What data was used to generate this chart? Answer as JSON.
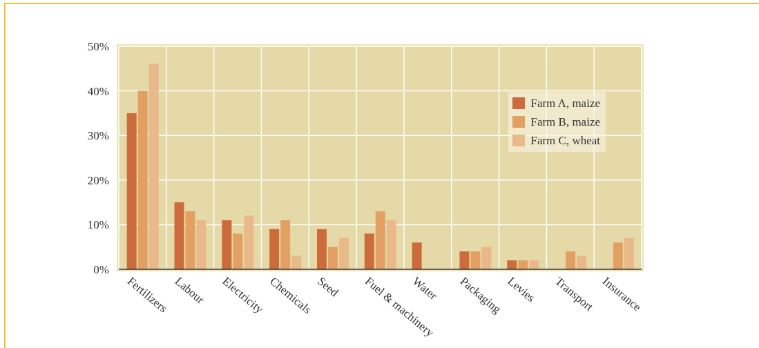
{
  "chart_data": {
    "type": "bar",
    "categories": [
      "Fertilizers",
      "Labour",
      "Electricity",
      "Chemicals",
      "Seed",
      "Fuel & machinery",
      "Water",
      "Packaging",
      "Levies",
      "Transport",
      "Insurance"
    ],
    "series": [
      {
        "name": "Farm A, maize",
        "color": "#cc6b3b",
        "values": [
          35,
          15,
          11,
          9,
          9,
          8,
          6,
          4,
          2,
          0,
          0
        ]
      },
      {
        "name": "Farm B, maize",
        "color": "#e2a162",
        "values": [
          40,
          13,
          8,
          11,
          5,
          13,
          0,
          4,
          2,
          4,
          6
        ]
      },
      {
        "name": "Farm C, wheat",
        "color": "#e9b98a",
        "values": [
          46,
          11,
          12,
          3,
          7,
          11,
          0,
          5,
          2,
          3,
          7
        ]
      }
    ],
    "ylim": [
      0,
      50
    ],
    "yticks": [
      {
        "value": 0,
        "label": "0%"
      },
      {
        "value": 10,
        "label": "10%"
      },
      {
        "value": 20,
        "label": "20%"
      },
      {
        "value": 30,
        "label": "30%"
      },
      {
        "value": 40,
        "label": "40%"
      },
      {
        "value": 50,
        "label": "50%"
      }
    ],
    "grid": true,
    "legend": "top right"
  }
}
